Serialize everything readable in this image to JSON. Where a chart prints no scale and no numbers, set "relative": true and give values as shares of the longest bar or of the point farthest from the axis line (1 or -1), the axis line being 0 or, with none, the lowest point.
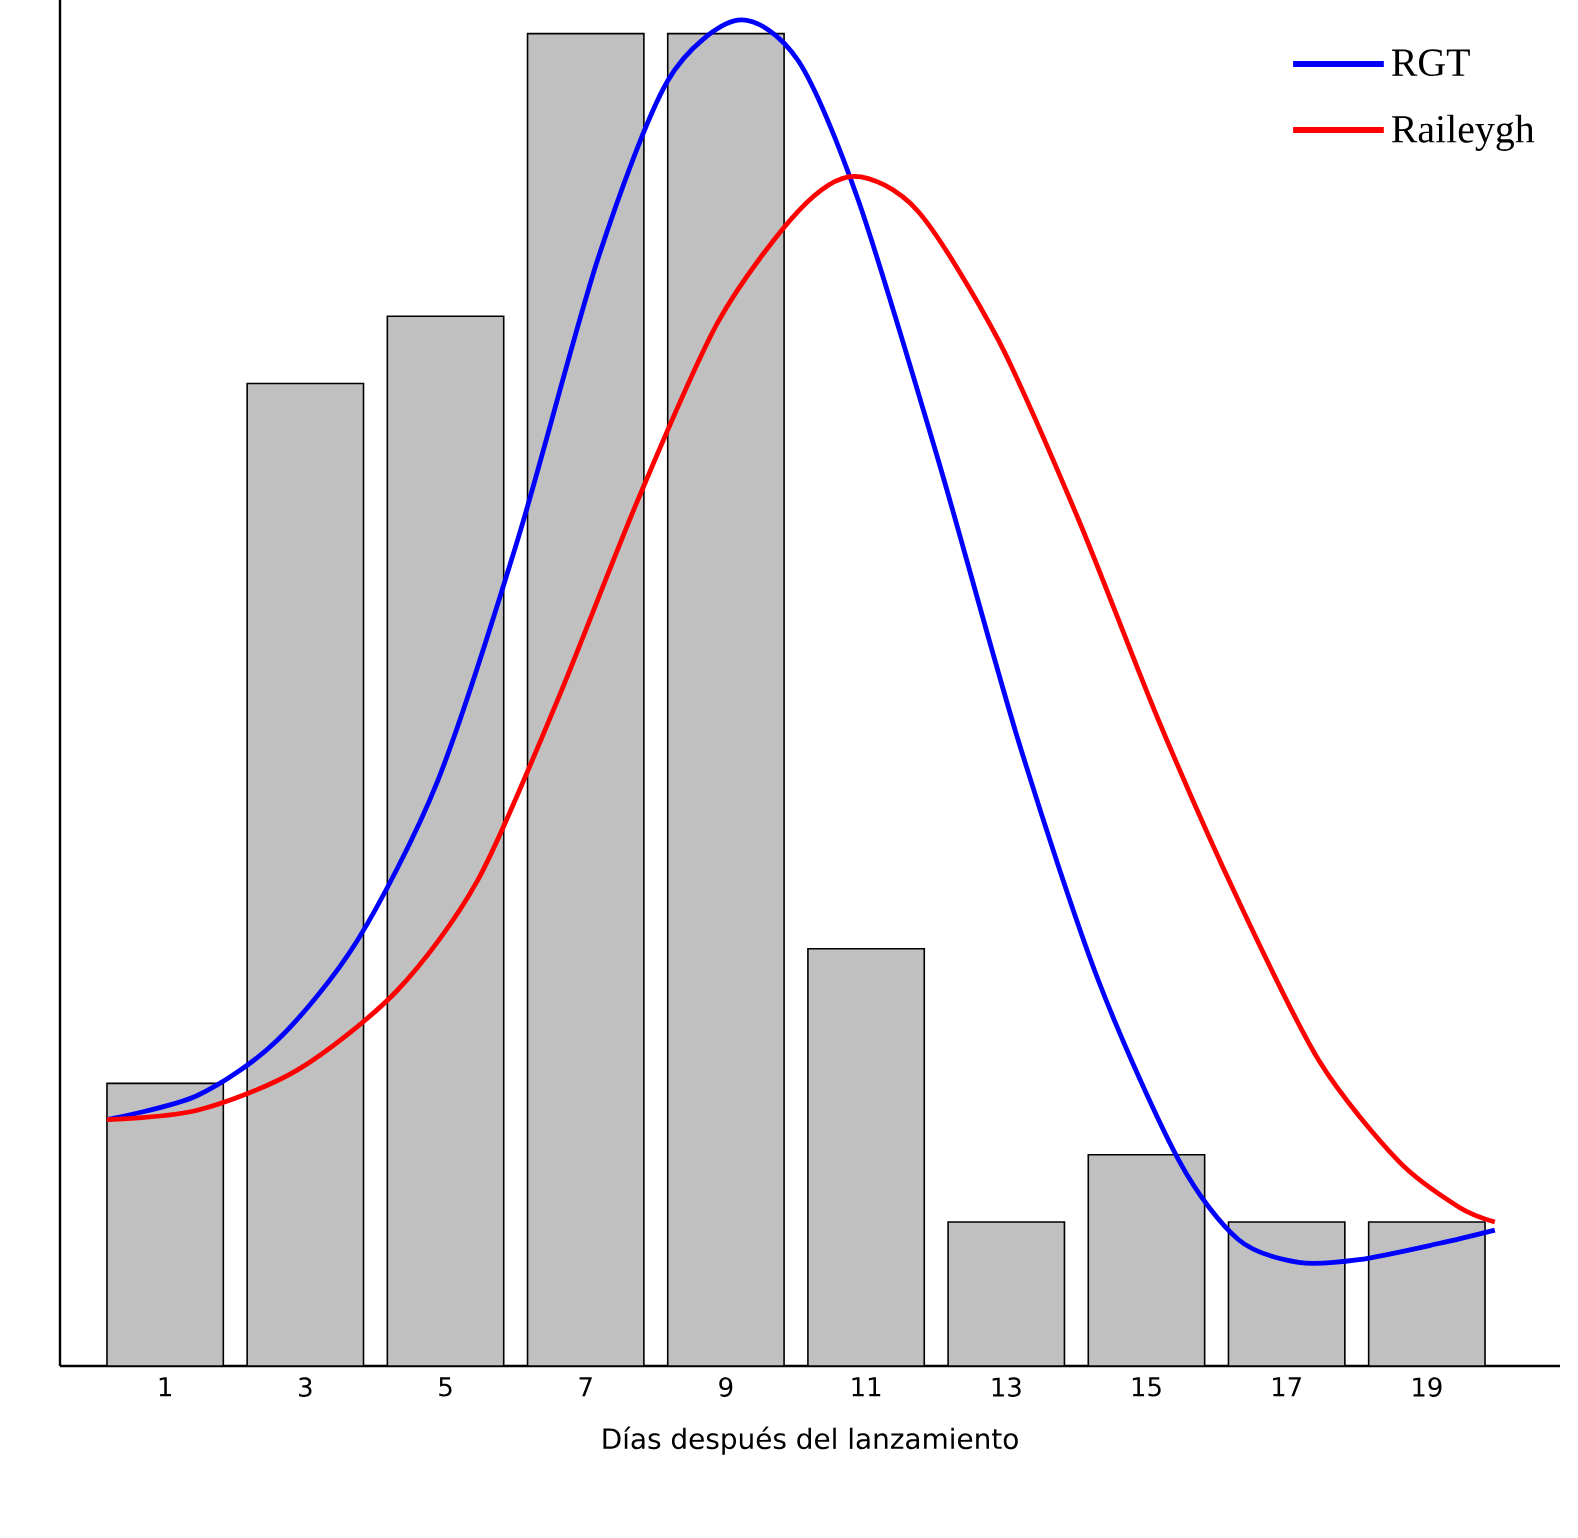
{
  "chart_data": {
    "type": "bar",
    "xlabel": "Días después del lanzamiento",
    "relative": true,
    "x": [
      1,
      3,
      5,
      7,
      9,
      11,
      13,
      15,
      17,
      19
    ],
    "xlim": [
      -0.5,
      20.9
    ],
    "xticks": [
      1,
      3,
      5,
      7,
      9,
      11,
      13,
      15,
      17,
      19
    ],
    "legend": "top right",
    "marker": "none",
    "series": [
      {
        "color": "#c0c0c0",
        "values": [
          0.21,
          0.73,
          0.78,
          0.99,
          0.99,
          0.31,
          0.107,
          0.157,
          0.107,
          0.107
        ]
      },
      {
        "type": "line",
        "name": "RGT",
        "color": "#0000ff",
        "x": [
          0.17,
          1.46,
          2.6,
          3.74,
          4.89,
          6.03,
          7.17,
          8.17,
          9.17,
          10.03,
          10.89,
          12.03,
          13.17,
          14.31,
          15.46,
          16.31,
          17.17,
          18.03,
          19.17,
          19.97
        ],
        "values": [
          0.183,
          0.201,
          0.242,
          0.316,
          0.435,
          0.614,
          0.822,
          0.955,
          1.0,
          0.97,
          0.866,
          0.673,
          0.465,
          0.287,
          0.153,
          0.094,
          0.077,
          0.079,
          0.091,
          0.101
        ]
      },
      {
        "type": "line",
        "name": "Raileygh",
        "color": "#ff0000",
        "x": [
          0.17,
          1.46,
          2.89,
          4.31,
          5.46,
          6.6,
          7.74,
          8.89,
          10.03,
          10.83,
          11.74,
          12.89,
          14.03,
          15.17,
          16.31,
          17.46,
          18.6,
          19.46,
          19.97
        ],
        "values": [
          0.183,
          0.19,
          0.22,
          0.279,
          0.361,
          0.495,
          0.643,
          0.776,
          0.858,
          0.884,
          0.858,
          0.762,
          0.629,
          0.48,
          0.346,
          0.227,
          0.152,
          0.118,
          0.107
        ]
      }
    ]
  }
}
